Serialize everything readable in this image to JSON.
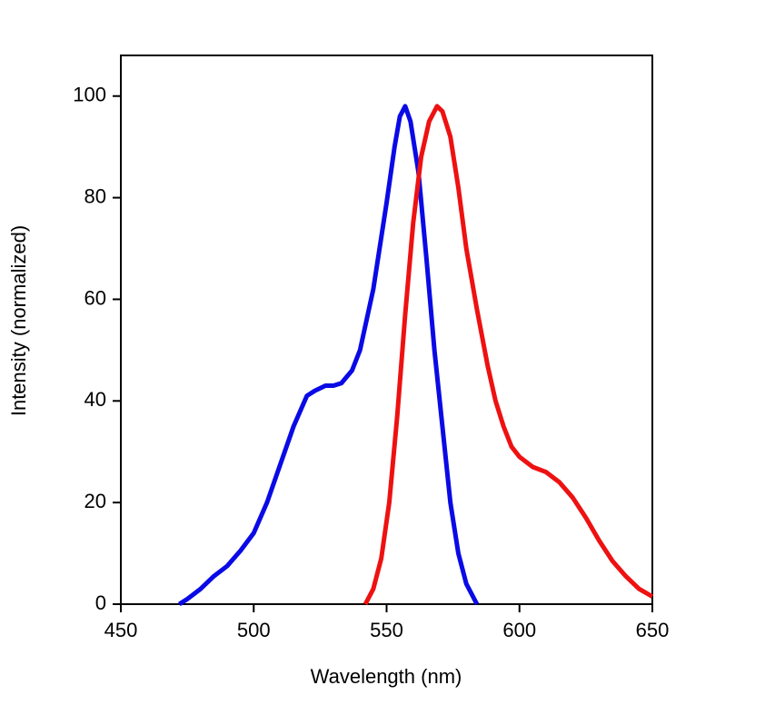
{
  "chart_data": {
    "type": "line",
    "x_label": "Wavelength (nm)",
    "y_label": "Intensity (normalized)",
    "xlim": [
      450,
      650
    ],
    "xticks": [
      450,
      500,
      550,
      600,
      650
    ],
    "ylim": [
      0,
      108
    ],
    "yticks": [
      0,
      20,
      40,
      60,
      80,
      100
    ],
    "series": [
      {
        "color": "#0a0ae6",
        "x": [
          472,
          475,
          480,
          485,
          490,
          495,
          500,
          505,
          510,
          515,
          520,
          523,
          527,
          530,
          533,
          537,
          540,
          545,
          550,
          553,
          555,
          557,
          559,
          562,
          565,
          568,
          571,
          574,
          577,
          580,
          584
        ],
        "values": [
          0,
          1,
          3,
          5.5,
          7.5,
          10.5,
          14,
          20,
          27.5,
          35,
          41,
          42,
          43,
          43,
          43.5,
          46,
          50,
          62,
          79,
          90,
          96,
          98,
          95,
          85,
          68,
          50,
          35,
          20,
          10,
          4,
          0
        ]
      },
      {
        "color": "#ee1111",
        "x": [
          542,
          545,
          548,
          551,
          554,
          557,
          560,
          563,
          566,
          569,
          571,
          574,
          577,
          580,
          584,
          588,
          591,
          594,
          597,
          600,
          605,
          610,
          615,
          620,
          625,
          630,
          635,
          640,
          645,
          650
        ],
        "values": [
          0,
          3,
          9,
          20,
          37,
          57,
          75,
          88,
          95,
          98,
          97,
          92,
          82,
          70,
          58,
          47,
          40,
          35,
          31,
          29,
          27,
          26,
          24,
          21,
          17,
          12.5,
          8.5,
          5.5,
          3,
          1.5
        ]
      }
    ]
  }
}
